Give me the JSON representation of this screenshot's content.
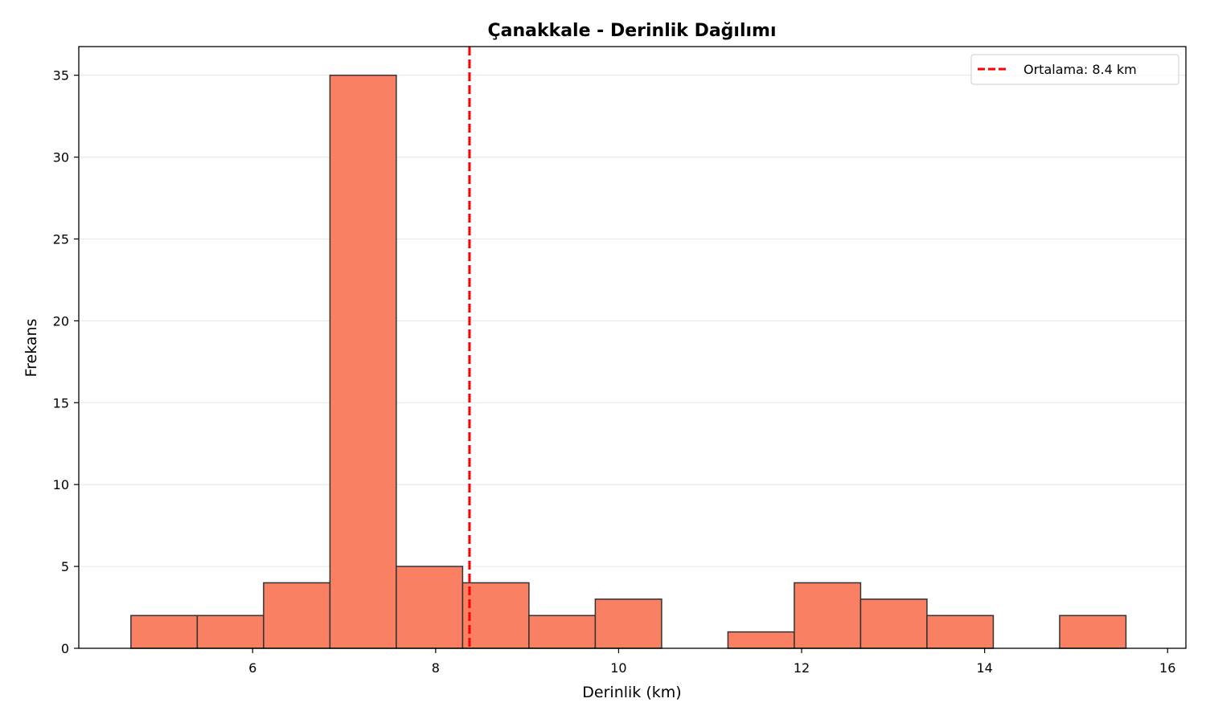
{
  "chart_data": {
    "type": "bar",
    "title": "Çanakkale - Derinlik Dağılımı",
    "xlabel": "Derinlik (km)",
    "ylabel": "Frekans",
    "xlim": [
      4.1,
      16.2
    ],
    "ylim": [
      0,
      36.75
    ],
    "xticks": [
      "6",
      "8",
      "10",
      "12",
      "14",
      "16"
    ],
    "yticks": [
      "0",
      "5",
      "10",
      "15",
      "20",
      "25",
      "30",
      "35"
    ],
    "grid": "y",
    "legend_position": "top-right",
    "bin_edges": [
      4.67,
      5.395,
      6.12,
      6.845,
      7.57,
      8.295,
      9.02,
      9.745,
      10.47,
      11.195,
      11.92,
      12.645,
      13.37,
      14.095,
      14.82,
      15.545
    ],
    "values": [
      2,
      2,
      4,
      35,
      5,
      4,
      2,
      3,
      0,
      1,
      4,
      3,
      2,
      0,
      2
    ],
    "bar_color": "#fa8064",
    "bar_edge_color": "#333333",
    "mean": {
      "value": 8.37,
      "label": "Ortalama: 8.4 km",
      "color": "#ff0000"
    }
  }
}
